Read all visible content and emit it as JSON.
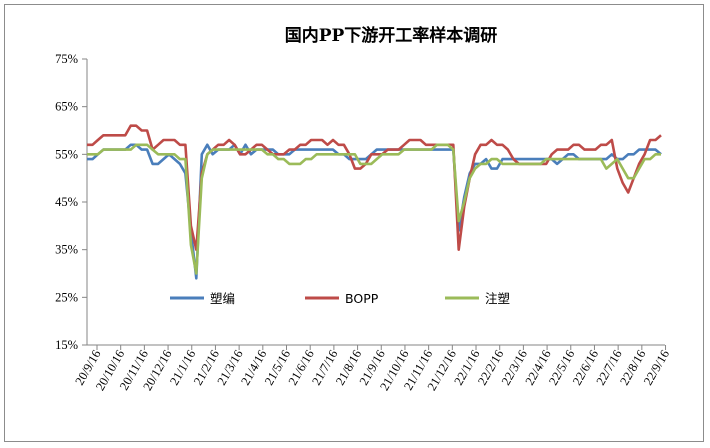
{
  "chart_data": {
    "type": "line",
    "title": "国内PP下游开工率样本调研",
    "xlabel": "",
    "ylabel": "",
    "ylim": [
      15,
      75
    ],
    "y_ticks": [
      "15%",
      "25%",
      "35%",
      "45%",
      "55%",
      "65%",
      "75%"
    ],
    "y_tick_values": [
      15,
      25,
      35,
      45,
      55,
      65,
      75
    ],
    "x_tick_labels": [
      "20/9/16",
      "20/10/16",
      "20/11/16",
      "20/12/16",
      "21/1/16",
      "21/2/16",
      "21/3/16",
      "21/4/16",
      "21/5/16",
      "21/6/16",
      "21/7/16",
      "21/8/16",
      "21/9/16",
      "21/10/16",
      "21/11/16",
      "21/12/16",
      "22/1/16",
      "22/2/16",
      "22/3/16",
      "22/4/16",
      "22/5/16",
      "22/6/16",
      "22/7/16",
      "22/8/16",
      "22/9/16"
    ],
    "grid": false,
    "legend_position": "lower-left inside",
    "series": [
      {
        "name": "塑编",
        "color": "#4a7ebb",
        "values": [
          54,
          54,
          55,
          56,
          56,
          56,
          56,
          56,
          57,
          57,
          56,
          56,
          53,
          53,
          54,
          55,
          54,
          53,
          51,
          39,
          29,
          55,
          57,
          55,
          56,
          56,
          56,
          57,
          55,
          57,
          55,
          56,
          56,
          56,
          56,
          55,
          55,
          55,
          56,
          56,
          56,
          56,
          56,
          56,
          56,
          56,
          55,
          55,
          54,
          54,
          54,
          54,
          55,
          56,
          56,
          56,
          56,
          56,
          56,
          56,
          56,
          56,
          56,
          56,
          56,
          56,
          56,
          56,
          39,
          46,
          51,
          53,
          53,
          54,
          52,
          52,
          54,
          54,
          54,
          54,
          54,
          54,
          54,
          54,
          54,
          54,
          53,
          54,
          55,
          55,
          54,
          54,
          54,
          54,
          54,
          54,
          55,
          54,
          54,
          55,
          55,
          56,
          56,
          56,
          56,
          55
        ]
      },
      {
        "name": "BOPP",
        "color": "#be4b48",
        "values": [
          57,
          57,
          58,
          59,
          59,
          59,
          59,
          59,
          61,
          61,
          60,
          60,
          56,
          57,
          58,
          58,
          58,
          57,
          57,
          40,
          35,
          51,
          55,
          56,
          57,
          57,
          58,
          57,
          55,
          55,
          56,
          57,
          57,
          56,
          55,
          55,
          55,
          56,
          56,
          57,
          57,
          58,
          58,
          58,
          57,
          58,
          57,
          57,
          55,
          52,
          52,
          53,
          55,
          55,
          55,
          56,
          56,
          56,
          57,
          58,
          58,
          58,
          57,
          57,
          57,
          57,
          57,
          57,
          35,
          44,
          50,
          55,
          57,
          57,
          58,
          57,
          57,
          56,
          54,
          53,
          53,
          53,
          53,
          53,
          53,
          55,
          56,
          56,
          56,
          57,
          57,
          56,
          56,
          56,
          57,
          57,
          58,
          52,
          49,
          47,
          50,
          53,
          55,
          58,
          58,
          59
        ]
      },
      {
        "name": "注塑",
        "color": "#9bbb59",
        "values": [
          55,
          55,
          55,
          56,
          56,
          56,
          56,
          56,
          56,
          57,
          57,
          57,
          56,
          55,
          55,
          55,
          55,
          54,
          54,
          36,
          30,
          50,
          55,
          56,
          56,
          56,
          56,
          56,
          56,
          56,
          56,
          56,
          56,
          55,
          55,
          54,
          54,
          53,
          53,
          53,
          54,
          54,
          55,
          55,
          55,
          55,
          55,
          55,
          55,
          55,
          53,
          53,
          53,
          54,
          55,
          55,
          55,
          55,
          56,
          56,
          56,
          56,
          56,
          56,
          57,
          57,
          57,
          56,
          41,
          45,
          50,
          52,
          53,
          53,
          54,
          54,
          53,
          53,
          53,
          53,
          53,
          53,
          53,
          53,
          54,
          54,
          54,
          54,
          54,
          54,
          54,
          54,
          54,
          54,
          54,
          52,
          53,
          54,
          52,
          50,
          50,
          52,
          54,
          54,
          55,
          55
        ]
      }
    ]
  }
}
